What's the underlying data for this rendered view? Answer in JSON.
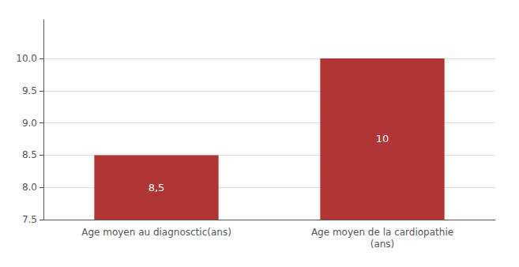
{
  "chart_data": {
    "type": "bar",
    "categories": [
      "Age moyen au diagnosctic(ans)",
      "Age moyen de la cardiopathie\n(ans)"
    ],
    "values": [
      8.5,
      10
    ],
    "value_labels": [
      "8,5",
      "10"
    ],
    "data_labels": true,
    "color": "#b03535",
    "ylim": [
      7.5,
      10.6
    ],
    "yticks": [
      7.5,
      {
        "value": 8,
        "label": "8.0"
      },
      8.5,
      {
        "value": 9,
        "label": "9.0"
      },
      9.5,
      {
        "value": 10,
        "label": "10.0"
      }
    ],
    "grid": true
  }
}
